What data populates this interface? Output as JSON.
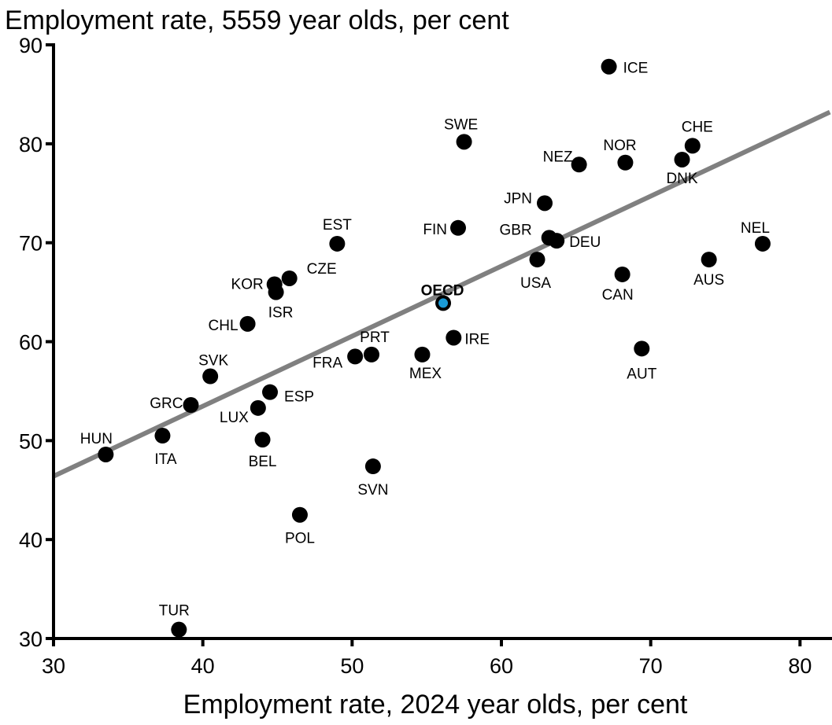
{
  "chart_data": {
    "type": "scatter",
    "ylabel": "Employment rate, 5559 year olds, per cent",
    "xlabel": "Employment rate, 2024 year olds, per cent",
    "xlim": [
      30,
      82
    ],
    "ylim": [
      30,
      90
    ],
    "xticks": [
      "30",
      "40",
      "50",
      "60",
      "70",
      "80"
    ],
    "yticks": [
      "30",
      "40",
      "50",
      "60",
      "70",
      "80",
      "90"
    ],
    "trendline": {
      "x": [
        30,
        82
      ],
      "y": [
        46.4,
        83.2
      ],
      "color": "#808080"
    },
    "point_color": "#000000",
    "highlight_color": "#1a9bd7",
    "points": [
      {
        "label": "ICE",
        "x": 67.2,
        "y": 87.8
      },
      {
        "label": "SWE",
        "x": 57.5,
        "y": 80.2
      },
      {
        "label": "NEZ",
        "x": 65.2,
        "y": 77.9
      },
      {
        "label": "NOR",
        "x": 68.3,
        "y": 78.1
      },
      {
        "label": "CHE",
        "x": 72.8,
        "y": 79.8
      },
      {
        "label": "DNK",
        "x": 72.1,
        "y": 78.4
      },
      {
        "label": "JPN",
        "x": 62.9,
        "y": 74.0
      },
      {
        "label": "FIN",
        "x": 57.1,
        "y": 71.5
      },
      {
        "label": "GBR",
        "x": 63.2,
        "y": 70.5
      },
      {
        "label": "DEU",
        "x": 63.7,
        "y": 70.2
      },
      {
        "label": "NEL",
        "x": 77.5,
        "y": 69.9
      },
      {
        "label": "EST",
        "x": 49.0,
        "y": 69.9
      },
      {
        "label": "USA",
        "x": 62.4,
        "y": 68.3
      },
      {
        "label": "AUS",
        "x": 73.9,
        "y": 68.3
      },
      {
        "label": "CAN",
        "x": 68.1,
        "y": 66.8
      },
      {
        "label": "KOR",
        "x": 44.8,
        "y": 65.8
      },
      {
        "label": "CZE",
        "x": 45.8,
        "y": 66.4
      },
      {
        "label": "ISR",
        "x": 44.9,
        "y": 65.0
      },
      {
        "label": "OECD",
        "x": 56.1,
        "y": 63.9,
        "highlight": true
      },
      {
        "label": "CHL",
        "x": 43.0,
        "y": 61.8
      },
      {
        "label": "IRE",
        "x": 56.8,
        "y": 60.4
      },
      {
        "label": "AUT",
        "x": 69.4,
        "y": 59.3
      },
      {
        "label": "PRT",
        "x": 51.3,
        "y": 58.7
      },
      {
        "label": "FRA",
        "x": 50.2,
        "y": 58.5
      },
      {
        "label": "MEX",
        "x": 54.7,
        "y": 58.7
      },
      {
        "label": "SVK",
        "x": 40.5,
        "y": 56.5
      },
      {
        "label": "ESP",
        "x": 44.5,
        "y": 54.9
      },
      {
        "label": "GRC",
        "x": 39.2,
        "y": 53.6
      },
      {
        "label": "LUX",
        "x": 43.7,
        "y": 53.3
      },
      {
        "label": "HUN",
        "x": 33.5,
        "y": 48.6
      },
      {
        "label": "ITA",
        "x": 37.3,
        "y": 50.5
      },
      {
        "label": "BEL",
        "x": 44.0,
        "y": 50.1
      },
      {
        "label": "SVN",
        "x": 51.4,
        "y": 47.4
      },
      {
        "label": "POL",
        "x": 46.5,
        "y": 42.5
      },
      {
        "label": "TUR",
        "x": 38.4,
        "y": 30.9
      }
    ]
  }
}
